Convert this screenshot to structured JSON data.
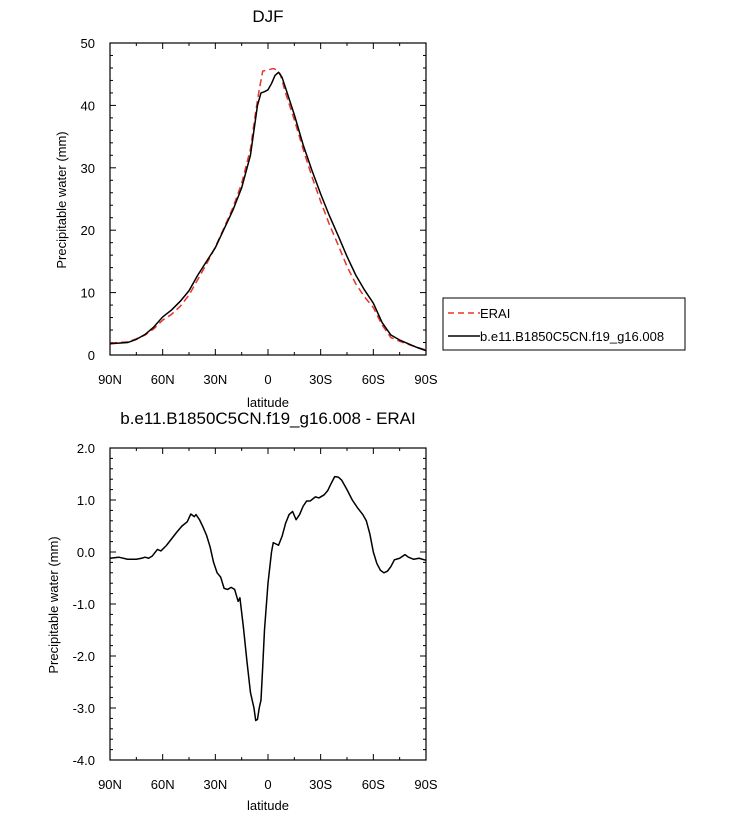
{
  "colors": {
    "erai": "#e8332a",
    "model": "#000000",
    "axis": "#000000"
  },
  "chart_data": [
    {
      "type": "line",
      "title": "DJF",
      "xlabel": "latitude",
      "ylabel": "Precipitable water (mm)",
      "xlim": [
        -90,
        90
      ],
      "ylim": [
        0,
        50
      ],
      "xticks": [
        -90,
        -60,
        -30,
        0,
        30,
        60,
        90
      ],
      "xticklabels": [
        "90N",
        "60N",
        "30N",
        "0",
        "30S",
        "60S",
        "90S"
      ],
      "yticks": [
        0,
        10,
        20,
        30,
        40,
        50
      ],
      "yticklabels": [
        "0",
        "10",
        "20",
        "30",
        "40",
        "50"
      ],
      "legend": "right",
      "series": [
        {
          "name": "ERAI",
          "style": "dashed",
          "points": [
            [
              -90,
              1.9
            ],
            [
              -85,
              2.0
            ],
            [
              -80,
              2.1
            ],
            [
              -75,
              2.6
            ],
            [
              -70,
              3.2
            ],
            [
              -65,
              4.2
            ],
            [
              -60,
              5.6
            ],
            [
              -55,
              6.5
            ],
            [
              -50,
              7.8
            ],
            [
              -45,
              9.6
            ],
            [
              -40,
              12.1
            ],
            [
              -35,
              14.6
            ],
            [
              -30,
              17.3
            ],
            [
              -25,
              20.4
            ],
            [
              -20,
              23.6
            ],
            [
              -15,
              27.5
            ],
            [
              -10,
              33.0
            ],
            [
              -7,
              39.0
            ],
            [
              -5,
              42.5
            ],
            [
              -3,
              45.5
            ],
            [
              0,
              45.7
            ],
            [
              3,
              45.9
            ],
            [
              5,
              45.7
            ],
            [
              7,
              45.0
            ],
            [
              10,
              42.0
            ],
            [
              15,
              37.7
            ],
            [
              20,
              33.0
            ],
            [
              25,
              28.6
            ],
            [
              30,
              24.6
            ],
            [
              35,
              20.9
            ],
            [
              40,
              17.6
            ],
            [
              45,
              14.2
            ],
            [
              50,
              11.4
            ],
            [
              55,
              9.3
            ],
            [
              60,
              7.6
            ],
            [
              65,
              4.8
            ],
            [
              70,
              2.8
            ],
            [
              75,
              2.2
            ],
            [
              80,
              1.7
            ],
            [
              85,
              1.2
            ],
            [
              90,
              0.8
            ]
          ]
        },
        {
          "name": "b.e11.B1850C5CN.f19_g16.008",
          "style": "solid",
          "points": [
            [
              -90,
              1.8
            ],
            [
              -85,
              1.9
            ],
            [
              -80,
              2.0
            ],
            [
              -75,
              2.5
            ],
            [
              -70,
              3.3
            ],
            [
              -65,
              4.5
            ],
            [
              -60,
              6.1
            ],
            [
              -55,
              7.2
            ],
            [
              -50,
              8.6
            ],
            [
              -45,
              10.3
            ],
            [
              -40,
              12.8
            ],
            [
              -35,
              15.0
            ],
            [
              -30,
              17.2
            ],
            [
              -25,
              20.2
            ],
            [
              -20,
              23.2
            ],
            [
              -15,
              26.8
            ],
            [
              -10,
              32.0
            ],
            [
              -8,
              36.0
            ],
            [
              -6,
              40.0
            ],
            [
              -4,
              42.0
            ],
            [
              -2,
              42.2
            ],
            [
              0,
              42.5
            ],
            [
              2,
              43.5
            ],
            [
              4,
              44.8
            ],
            [
              6,
              45.3
            ],
            [
              8,
              44.5
            ],
            [
              10,
              42.8
            ],
            [
              15,
              38.5
            ],
            [
              20,
              33.7
            ],
            [
              25,
              29.6
            ],
            [
              30,
              25.8
            ],
            [
              35,
              22.3
            ],
            [
              40,
              19.1
            ],
            [
              45,
              15.8
            ],
            [
              50,
              12.8
            ],
            [
              55,
              10.4
            ],
            [
              60,
              8.3
            ],
            [
              65,
              5.2
            ],
            [
              70,
              3.2
            ],
            [
              75,
              2.4
            ],
            [
              80,
              1.8
            ],
            [
              85,
              1.2
            ],
            [
              90,
              0.7
            ]
          ]
        }
      ]
    },
    {
      "type": "line",
      "title": "b.e11.B1850C5CN.f19_g16.008 - ERAI",
      "xlabel": "latitude",
      "ylabel": "Precipitable water (mm)",
      "xlim": [
        -90,
        90
      ],
      "ylim": [
        -4,
        2
      ],
      "xticks": [
        -90,
        -60,
        -30,
        0,
        30,
        60,
        90
      ],
      "xticklabels": [
        "90N",
        "60N",
        "30N",
        "0",
        "30S",
        "60S",
        "90S"
      ],
      "yticks": [
        -4,
        -3,
        -2,
        -1,
        0,
        1,
        2
      ],
      "yticklabels": [
        "-4.0",
        "-3.0",
        "-2.0",
        "-1.0",
        "0.0",
        "1.0",
        "2.0"
      ],
      "series": [
        {
          "style": "solid",
          "points": [
            [
              -90,
              -0.12
            ],
            [
              -85,
              -0.1
            ],
            [
              -80,
              -0.14
            ],
            [
              -75,
              -0.14
            ],
            [
              -72,
              -0.12
            ],
            [
              -70,
              -0.1
            ],
            [
              -68,
              -0.12
            ],
            [
              -66,
              -0.08
            ],
            [
              -63,
              0.05
            ],
            [
              -61,
              0.02
            ],
            [
              -58,
              0.12
            ],
            [
              -55,
              0.25
            ],
            [
              -52,
              0.38
            ],
            [
              -49,
              0.5
            ],
            [
              -46,
              0.58
            ],
            [
              -44,
              0.73
            ],
            [
              -42,
              0.68
            ],
            [
              -41,
              0.72
            ],
            [
              -39,
              0.62
            ],
            [
              -37,
              0.48
            ],
            [
              -35,
              0.32
            ],
            [
              -33,
              0.1
            ],
            [
              -31,
              -0.2
            ],
            [
              -29,
              -0.4
            ],
            [
              -27,
              -0.48
            ],
            [
              -25,
              -0.7
            ],
            [
              -23,
              -0.72
            ],
            [
              -21,
              -0.68
            ],
            [
              -19,
              -0.72
            ],
            [
              -17,
              -0.95
            ],
            [
              -16,
              -0.88
            ],
            [
              -14,
              -1.45
            ],
            [
              -12,
              -2.1
            ],
            [
              -10,
              -2.7
            ],
            [
              -8,
              -3.0
            ],
            [
              -7,
              -3.24
            ],
            [
              -6,
              -3.22
            ],
            [
              -5,
              -3.0
            ],
            [
              -4,
              -2.85
            ],
            [
              -3,
              -2.2
            ],
            [
              -2,
              -1.5
            ],
            [
              0,
              -0.6
            ],
            [
              2,
              0.0
            ],
            [
              3,
              0.18
            ],
            [
              6,
              0.13
            ],
            [
              8,
              0.3
            ],
            [
              10,
              0.55
            ],
            [
              12,
              0.72
            ],
            [
              14,
              0.78
            ],
            [
              16,
              0.62
            ],
            [
              18,
              0.72
            ],
            [
              20,
              0.88
            ],
            [
              22,
              0.98
            ],
            [
              24,
              0.98
            ],
            [
              27,
              1.06
            ],
            [
              29,
              1.04
            ],
            [
              32,
              1.1
            ],
            [
              34,
              1.18
            ],
            [
              36,
              1.32
            ],
            [
              38,
              1.45
            ],
            [
              40,
              1.44
            ],
            [
              42,
              1.38
            ],
            [
              45,
              1.2
            ],
            [
              48,
              1.0
            ],
            [
              51,
              0.85
            ],
            [
              54,
              0.72
            ],
            [
              56,
              0.6
            ],
            [
              58,
              0.35
            ],
            [
              60,
              0.0
            ],
            [
              62,
              -0.22
            ],
            [
              64,
              -0.35
            ],
            [
              66,
              -0.4
            ],
            [
              68,
              -0.37
            ],
            [
              70,
              -0.28
            ],
            [
              72,
              -0.15
            ],
            [
              75,
              -0.12
            ],
            [
              78,
              -0.05
            ],
            [
              80,
              -0.1
            ],
            [
              83,
              -0.14
            ],
            [
              86,
              -0.12
            ],
            [
              90,
              -0.16
            ]
          ]
        }
      ]
    }
  ]
}
